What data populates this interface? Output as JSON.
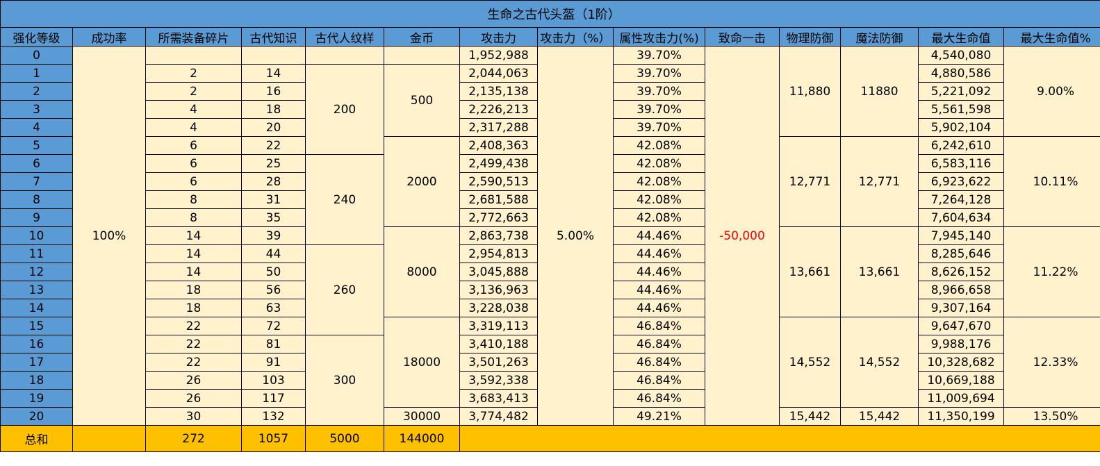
{
  "title": "生命之古代头盔（1阶）",
  "headers": [
    "强化等级",
    "成功率",
    "所需装备碎片",
    "古代知识",
    "古代人纹样",
    "金币",
    "攻击力",
    "攻击力（%）",
    "属性攻击力(%)",
    "致命一击",
    "物理防御",
    "魔法防御",
    "最大生命值",
    "最大生命值%"
  ],
  "rows": [
    {
      "level": "0",
      "shards": "",
      "knowledge": "",
      "attack": "1,952,988",
      "attr_attack": "39.70%",
      "max_hp": "4,540,080"
    },
    {
      "level": "1",
      "shards": "2",
      "knowledge": "14",
      "attack": "2,044,063",
      "attr_attack": "39.70%",
      "max_hp": "4,880,586"
    },
    {
      "level": "2",
      "shards": "2",
      "knowledge": "16",
      "attack": "2,135,138",
      "attr_attack": "39.70%",
      "max_hp": "5,221,092"
    },
    {
      "level": "3",
      "shards": "4",
      "knowledge": "18",
      "attack": "2,226,213",
      "attr_attack": "39.70%",
      "max_hp": "5,561,598"
    },
    {
      "level": "4",
      "shards": "4",
      "knowledge": "20",
      "attack": "2,317,288",
      "attr_attack": "39.70%",
      "max_hp": "5,902,104"
    },
    {
      "level": "5",
      "shards": "6",
      "knowledge": "22",
      "attack": "2,408,363",
      "attr_attack": "42.08%",
      "max_hp": "6,242,610"
    },
    {
      "level": "6",
      "shards": "6",
      "knowledge": "25",
      "attack": "2,499,438",
      "attr_attack": "42.08%",
      "max_hp": "6,583,116"
    },
    {
      "level": "7",
      "shards": "6",
      "knowledge": "28",
      "attack": "2,590,513",
      "attr_attack": "42.08%",
      "max_hp": "6,923,622"
    },
    {
      "level": "8",
      "shards": "8",
      "knowledge": "31",
      "attack": "2,681,588",
      "attr_attack": "42.08%",
      "max_hp": "7,264,128"
    },
    {
      "level": "9",
      "shards": "8",
      "knowledge": "35",
      "attack": "2,772,663",
      "attr_attack": "42.08%",
      "max_hp": "7,604,634"
    },
    {
      "level": "10",
      "shards": "14",
      "knowledge": "39",
      "attack": "2,863,738",
      "attr_attack": "44.46%",
      "max_hp": "7,945,140"
    },
    {
      "level": "11",
      "shards": "14",
      "knowledge": "44",
      "attack": "2,954,813",
      "attr_attack": "44.46%",
      "max_hp": "8,285,646"
    },
    {
      "level": "12",
      "shards": "14",
      "knowledge": "50",
      "attack": "3,045,888",
      "attr_attack": "44.46%",
      "max_hp": "8,626,152"
    },
    {
      "level": "13",
      "shards": "18",
      "knowledge": "56",
      "attack": "3,136,963",
      "attr_attack": "44.46%",
      "max_hp": "8,966,658"
    },
    {
      "level": "14",
      "shards": "18",
      "knowledge": "63",
      "attack": "3,228,038",
      "attr_attack": "44.46%",
      "max_hp": "9,307,164"
    },
    {
      "level": "15",
      "shards": "22",
      "knowledge": "72",
      "attack": "3,319,113",
      "attr_attack": "46.84%",
      "max_hp": "9,647,670"
    },
    {
      "level": "16",
      "shards": "22",
      "knowledge": "81",
      "attack": "3,410,188",
      "attr_attack": "46.84%",
      "max_hp": "9,988,176"
    },
    {
      "level": "17",
      "shards": "22",
      "knowledge": "91",
      "attack": "3,501,263",
      "attr_attack": "46.84%",
      "max_hp": "10,328,682"
    },
    {
      "level": "18",
      "shards": "26",
      "knowledge": "103",
      "attack": "3,592,338",
      "attr_attack": "46.84%",
      "max_hp": "10,669,188"
    },
    {
      "level": "19",
      "shards": "26",
      "knowledge": "117",
      "attack": "3,683,413",
      "attr_attack": "46.84%",
      "max_hp": "11,009,694"
    },
    {
      "level": "20",
      "shards": "30",
      "knowledge": "132",
      "attack": "3,774,482",
      "attr_attack": "49.21%",
      "max_hp": "11,350,199"
    }
  ],
  "merged": {
    "success_rate": "100%",
    "attack_pct": "5.00%",
    "crit": "-50,000",
    "pattern": [
      "",
      "200",
      "240",
      "260",
      "300"
    ],
    "gold": [
      "",
      "500",
      "2000",
      "8000",
      "18000",
      "30000"
    ],
    "phys_def": [
      "11,880",
      "12,771",
      "13,661",
      "14,552",
      "15,442"
    ],
    "mag_def": [
      "11880",
      "12,771",
      "13,661",
      "14,552",
      "15,442"
    ],
    "max_hp_pct": [
      "9.00%",
      "10.11%",
      "11.22%",
      "12.33%",
      "13.50%"
    ]
  },
  "totals": {
    "label": "总和",
    "shards": "272",
    "knowledge": "1057",
    "pattern": "5000",
    "gold": "144000"
  },
  "colors": {
    "header_blue": "#5b9bd5",
    "cell_cream": "#fff2cc",
    "total_orange": "#ffc000",
    "negative_red": "#ff0000"
  }
}
